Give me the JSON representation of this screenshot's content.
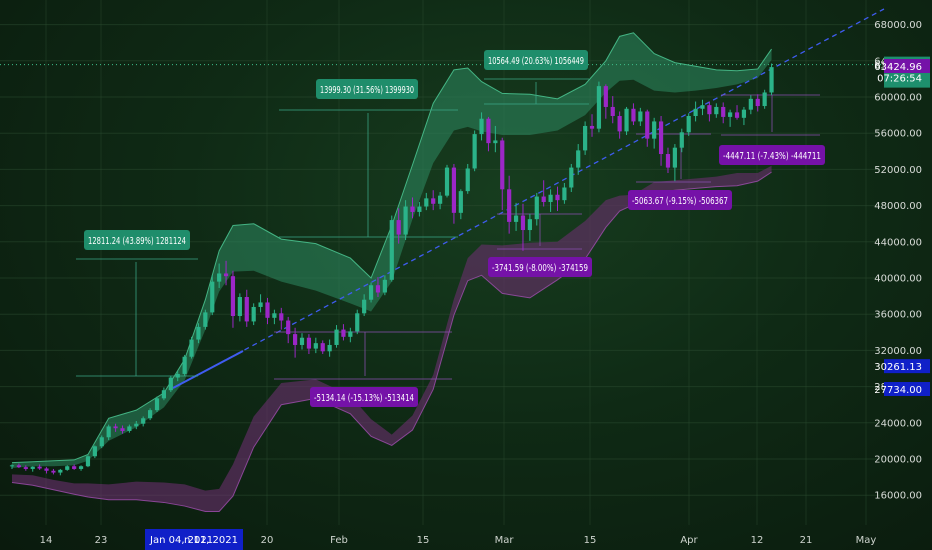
{
  "chart_data": {
    "type": "candlestick",
    "title": "",
    "ylim": [
      13500,
      70500
    ],
    "y_ticks": [
      "68000.00",
      "64000.00",
      "60000.00",
      "56000.00",
      "52000.00",
      "48000.00",
      "44000.00",
      "40000.00",
      "36000.00",
      "32000.00",
      "28000.00",
      "24000.00",
      "20000.00",
      "16000.00"
    ],
    "x_ticks": [
      "14",
      "23",
      "20",
      "Feb",
      "15",
      "Mar",
      "15",
      "Apr",
      "12",
      "21",
      "May"
    ],
    "x_cursor_labels": [
      "Jan 04, 2021",
      "n 11, 2021"
    ],
    "price_tags": {
      "last_price": "63577.88",
      "countdown": "07:26:54",
      "level_purple": "63424.96",
      "blue_1": "30261.13",
      "blue_2": "27734.00"
    },
    "measurements": [
      {
        "text": "12811.24 (43.89%) 1281124",
        "kind": "up"
      },
      {
        "text": "13999.30 (31.56%) 1399930",
        "kind": "up"
      },
      {
        "text": "10564.49 (20.63%) 1056449",
        "kind": "up"
      },
      {
        "text": "-5134.14 (-15.13%) -513414",
        "kind": "down"
      },
      {
        "text": "-3741.59 (-8.00%) -374159",
        "kind": "down"
      },
      {
        "text": "-5063.67 (-9.15%) -506367",
        "kind": "down"
      },
      {
        "text": "-4447.11 (-7.43%) -444711",
        "kind": "down"
      }
    ],
    "candles": [
      [
        19200,
        19400,
        18900,
        19300
      ],
      [
        19300,
        19500,
        19000,
        19100
      ],
      [
        19100,
        19300,
        18700,
        18900
      ],
      [
        18900,
        19200,
        18600,
        19150
      ],
      [
        19150,
        19400,
        18800,
        18950
      ],
      [
        18950,
        19100,
        18400,
        18700
      ],
      [
        18700,
        18900,
        18300,
        18500
      ],
      [
        18500,
        18900,
        18200,
        18800
      ],
      [
        18800,
        19300,
        18700,
        19200
      ],
      [
        19200,
        19400,
        18800,
        18900
      ],
      [
        18900,
        19300,
        18700,
        19200
      ],
      [
        19200,
        20400,
        19100,
        20300
      ],
      [
        20300,
        21500,
        20100,
        21400
      ],
      [
        21400,
        22600,
        21200,
        22400
      ],
      [
        22400,
        23800,
        22100,
        23600
      ],
      [
        23600,
        23900,
        23000,
        23400
      ],
      [
        23400,
        23700,
        22800,
        23100
      ],
      [
        23100,
        23800,
        22900,
        23600
      ],
      [
        23600,
        24200,
        23300,
        23900
      ],
      [
        23900,
        24700,
        23600,
        24500
      ],
      [
        24500,
        25600,
        24300,
        25400
      ],
      [
        25400,
        26900,
        25200,
        26700
      ],
      [
        26700,
        27900,
        26500,
        27600
      ],
      [
        27600,
        29200,
        27400,
        29000
      ],
      [
        29000,
        29700,
        28600,
        29400
      ],
      [
        29400,
        31500,
        29200,
        31300
      ],
      [
        31300,
        33500,
        31100,
        33200
      ],
      [
        33200,
        35000,
        32800,
        34600
      ],
      [
        34600,
        36500,
        34300,
        36200
      ],
      [
        36200,
        40300,
        35900,
        39600
      ],
      [
        39600,
        41600,
        38900,
        40500
      ],
      [
        40500,
        41900,
        39200,
        40200
      ],
      [
        40200,
        40800,
        34500,
        35800
      ],
      [
        35800,
        38300,
        35200,
        37900
      ],
      [
        37900,
        38700,
        34600,
        35200
      ],
      [
        35200,
        37200,
        34800,
        36800
      ],
      [
        36800,
        38200,
        36200,
        37300
      ],
      [
        37300,
        37800,
        34900,
        35600
      ],
      [
        35600,
        36500,
        34900,
        36100
      ],
      [
        36100,
        36700,
        34300,
        35300
      ],
      [
        35300,
        35700,
        32800,
        33800
      ],
      [
        33800,
        34500,
        31200,
        32600
      ],
      [
        32600,
        33900,
        32100,
        33400
      ],
      [
        33400,
        33800,
        31600,
        32200
      ],
      [
        32200,
        33400,
        31700,
        32800
      ],
      [
        32800,
        33100,
        31600,
        31900
      ],
      [
        31900,
        33200,
        31300,
        32600
      ],
      [
        32600,
        34800,
        32300,
        34300
      ],
      [
        34300,
        34900,
        33100,
        33500
      ],
      [
        33500,
        34500,
        32900,
        34100
      ],
      [
        34100,
        36500,
        33800,
        36100
      ],
      [
        36100,
        38200,
        35800,
        37600
      ],
      [
        37600,
        39500,
        37300,
        39200
      ],
      [
        39200,
        40100,
        37900,
        38400
      ],
      [
        38400,
        40300,
        38100,
        39800
      ],
      [
        39800,
        46900,
        39600,
        46400
      ],
      [
        46400,
        47700,
        43800,
        44800
      ],
      [
        44800,
        48600,
        44200,
        47900
      ],
      [
        47900,
        48900,
        46600,
        47300
      ],
      [
        47300,
        48400,
        46800,
        47900
      ],
      [
        47900,
        49400,
        47500,
        48800
      ],
      [
        48800,
        49700,
        47500,
        48200
      ],
      [
        48200,
        49500,
        47600,
        49100
      ],
      [
        49100,
        52500,
        48900,
        52200
      ],
      [
        52200,
        52600,
        46000,
        47200
      ],
      [
        47200,
        49800,
        46500,
        49600
      ],
      [
        49600,
        52600,
        49300,
        52100
      ],
      [
        52100,
        56300,
        51800,
        55900
      ],
      [
        55900,
        58300,
        55200,
        57600
      ],
      [
        57600,
        57800,
        54000,
        54900
      ],
      [
        54900,
        56800,
        53900,
        55200
      ],
      [
        55200,
        55500,
        47500,
        49800
      ],
      [
        49800,
        51300,
        44900,
        46200
      ],
      [
        46200,
        48300,
        45200,
        46900
      ],
      [
        46900,
        48200,
        43000,
        45300
      ],
      [
        45300,
        47100,
        44100,
        46500
      ],
      [
        46500,
        49400,
        45800,
        49000
      ],
      [
        49000,
        50800,
        47900,
        48400
      ],
      [
        48400,
        49800,
        47300,
        49200
      ],
      [
        49200,
        50100,
        47400,
        48600
      ],
      [
        48600,
        50500,
        48200,
        50000
      ],
      [
        50000,
        52600,
        49500,
        52200
      ],
      [
        52200,
        54800,
        51400,
        54100
      ],
      [
        54100,
        57300,
        53600,
        56800
      ],
      [
        56800,
        58100,
        55600,
        56500
      ],
      [
        56500,
        61700,
        56100,
        61200
      ],
      [
        61200,
        61400,
        57600,
        58900
      ],
      [
        58900,
        60100,
        57100,
        57900
      ],
      [
        57900,
        58400,
        55400,
        56200
      ],
      [
        56200,
        58900,
        55800,
        58700
      ],
      [
        58700,
        59300,
        56900,
        57300
      ],
      [
        57300,
        58800,
        56800,
        58400
      ],
      [
        58400,
        58600,
        54500,
        55400
      ],
      [
        55400,
        57700,
        54300,
        57300
      ],
      [
        57300,
        57900,
        52400,
        53700
      ],
      [
        53700,
        54400,
        51600,
        52200
      ],
      [
        52200,
        54800,
        50700,
        54400
      ],
      [
        54400,
        56500,
        53900,
        56100
      ],
      [
        56100,
        58200,
        55700,
        57900
      ],
      [
        57900,
        59500,
        57300,
        58700
      ],
      [
        58700,
        59700,
        58000,
        59100
      ],
      [
        59100,
        59500,
        57300,
        58100
      ],
      [
        58100,
        59300,
        57700,
        58900
      ],
      [
        58900,
        59400,
        57100,
        57800
      ],
      [
        57800,
        58600,
        56700,
        58300
      ],
      [
        58300,
        59100,
        57500,
        57700
      ],
      [
        57700,
        58900,
        56900,
        58600
      ],
      [
        58600,
        60200,
        58100,
        59800
      ],
      [
        59800,
        60300,
        58400,
        59000
      ],
      [
        59000,
        60800,
        58700,
        60500
      ],
      [
        60500,
        63700,
        60200,
        63300
      ]
    ],
    "bands": {
      "upper": [
        [
          0,
          19600
        ],
        [
          3,
          19700
        ],
        [
          6,
          19800
        ],
        [
          9,
          19900
        ],
        [
          11,
          20500
        ],
        [
          14,
          24500
        ],
        [
          18,
          25400
        ],
        [
          22,
          27300
        ],
        [
          25,
          31000
        ],
        [
          28,
          37600
        ],
        [
          30,
          43000
        ],
        [
          32,
          45800
        ],
        [
          35,
          46000
        ],
        [
          39,
          44300
        ],
        [
          44,
          43800
        ],
        [
          49,
          42200
        ],
        [
          52,
          40000
        ],
        [
          55,
          45800
        ],
        [
          58,
          52500
        ],
        [
          61,
          59300
        ],
        [
          64,
          63000
        ],
        [
          66,
          63200
        ],
        [
          68,
          61700
        ],
        [
          71,
          60400
        ],
        [
          75,
          60300
        ],
        [
          79,
          59800
        ],
        [
          83,
          61400
        ],
        [
          86,
          64000
        ],
        [
          88,
          66700
        ],
        [
          90,
          67100
        ],
        [
          93,
          64800
        ],
        [
          96,
          63800
        ],
        [
          99,
          63400
        ],
        [
          102,
          63000
        ],
        [
          105,
          62900
        ],
        [
          108,
          63100
        ],
        [
          110,
          65300
        ]
      ],
      "upper_inner": [
        [
          0,
          19000
        ],
        [
          3,
          19200
        ],
        [
          6,
          19200
        ],
        [
          9,
          19300
        ],
        [
          11,
          19800
        ],
        [
          14,
          22000
        ],
        [
          18,
          23500
        ],
        [
          22,
          25700
        ],
        [
          25,
          28700
        ],
        [
          28,
          34300
        ],
        [
          30,
          38500
        ],
        [
          32,
          40700
        ],
        [
          35,
          40800
        ],
        [
          39,
          39600
        ],
        [
          44,
          38600
        ],
        [
          49,
          37200
        ],
        [
          52,
          36300
        ],
        [
          55,
          39600
        ],
        [
          58,
          46500
        ],
        [
          61,
          52700
        ],
        [
          64,
          56300
        ],
        [
          66,
          56700
        ],
        [
          68,
          56200
        ],
        [
          71,
          55800
        ],
        [
          75,
          55800
        ],
        [
          79,
          56300
        ],
        [
          83,
          58000
        ],
        [
          86,
          60500
        ],
        [
          88,
          61800
        ],
        [
          90,
          61900
        ],
        [
          93,
          60700
        ],
        [
          96,
          60500
        ],
        [
          99,
          60700
        ],
        [
          102,
          61000
        ],
        [
          105,
          61400
        ],
        [
          108,
          62100
        ],
        [
          110,
          64100
        ]
      ],
      "lower_inner": [
        [
          0,
          18300
        ],
        [
          3,
          18200
        ],
        [
          6,
          17700
        ],
        [
          9,
          17300
        ],
        [
          11,
          17300
        ],
        [
          14,
          17200
        ],
        [
          18,
          17500
        ],
        [
          22,
          17400
        ],
        [
          25,
          17200
        ],
        [
          28,
          16500
        ],
        [
          30,
          16700
        ],
        [
          32,
          19400
        ],
        [
          35,
          24700
        ],
        [
          39,
          28400
        ],
        [
          44,
          28800
        ],
        [
          49,
          27000
        ],
        [
          52,
          24400
        ],
        [
          55,
          22700
        ],
        [
          58,
          24800
        ],
        [
          61,
          29300
        ],
        [
          64,
          37700
        ],
        [
          66,
          42200
        ],
        [
          68,
          43700
        ],
        [
          71,
          43600
        ],
        [
          75,
          43900
        ],
        [
          79,
          44000
        ],
        [
          83,
          46300
        ],
        [
          86,
          48600
        ],
        [
          88,
          49100
        ],
        [
          90,
          49200
        ],
        [
          93,
          50600
        ],
        [
          96,
          50800
        ],
        [
          99,
          51000
        ],
        [
          102,
          51200
        ],
        [
          105,
          51600
        ],
        [
          108,
          51600
        ],
        [
          110,
          52400
        ]
      ],
      "lower": [
        [
          0,
          17400
        ],
        [
          3,
          17100
        ],
        [
          6,
          16600
        ],
        [
          9,
          16100
        ],
        [
          11,
          15800
        ],
        [
          14,
          15500
        ],
        [
          18,
          15500
        ],
        [
          22,
          15200
        ],
        [
          25,
          14800
        ],
        [
          28,
          14200
        ],
        [
          30,
          14200
        ],
        [
          32,
          15900
        ],
        [
          35,
          21300
        ],
        [
          39,
          26000
        ],
        [
          44,
          26700
        ],
        [
          49,
          25000
        ],
        [
          52,
          22500
        ],
        [
          55,
          21500
        ],
        [
          58,
          23200
        ],
        [
          61,
          27700
        ],
        [
          64,
          35900
        ],
        [
          66,
          39700
        ],
        [
          68,
          40300
        ],
        [
          71,
          38300
        ],
        [
          75,
          37800
        ],
        [
          79,
          39800
        ],
        [
          83,
          42100
        ],
        [
          86,
          45600
        ],
        [
          88,
          47400
        ],
        [
          90,
          48100
        ],
        [
          93,
          49400
        ],
        [
          96,
          49700
        ],
        [
          99,
          49900
        ],
        [
          102,
          50100
        ],
        [
          105,
          50200
        ],
        [
          108,
          50700
        ],
        [
          110,
          51700
        ]
      ]
    }
  }
}
